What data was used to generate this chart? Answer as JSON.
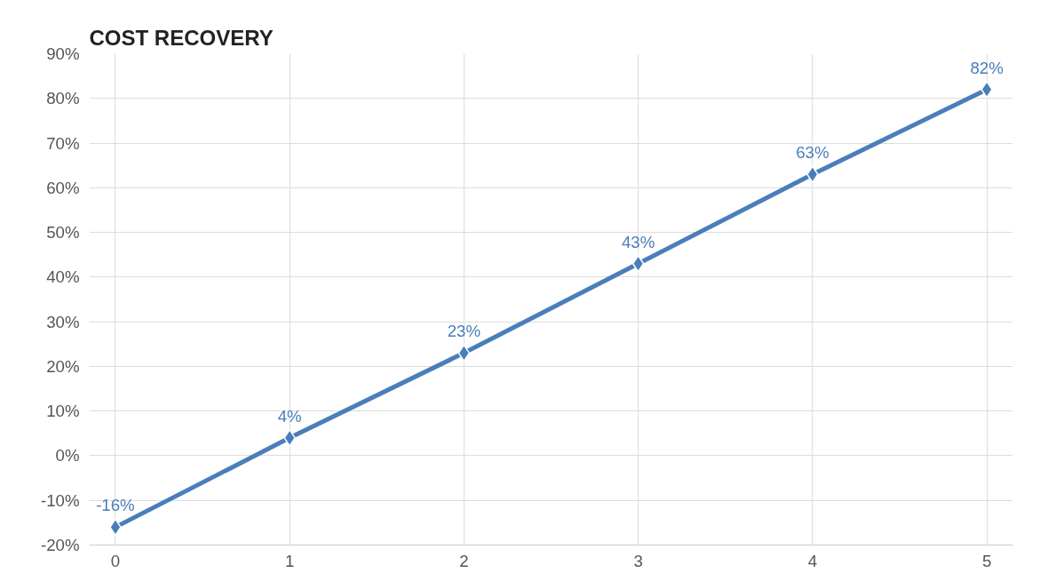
{
  "chart_data": {
    "type": "line",
    "title": "COST RECOVERY",
    "x": [
      0,
      1,
      2,
      3,
      4,
      5
    ],
    "series": [
      {
        "color": "#4a7ebb",
        "values": [
          -16,
          4,
          23,
          43,
          63,
          82
        ],
        "value_labels": [
          "-16%",
          "4%",
          "23%",
          "43%",
          "63%",
          "82%"
        ]
      }
    ],
    "xlim": [
      -0.15,
      5.15
    ],
    "xticks": [
      0,
      1,
      2,
      3,
      4,
      5
    ],
    "ylim": [
      -20,
      90
    ],
    "yticks": [
      {
        "value": -20,
        "label": "-20%"
      },
      {
        "value": -10,
        "label": "-10%"
      },
      {
        "value": 0,
        "label": "0%"
      },
      {
        "value": 10,
        "label": "10%"
      },
      {
        "value": 20,
        "label": "20%"
      },
      {
        "value": 30,
        "label": "30%"
      },
      {
        "value": 40,
        "label": "40%"
      },
      {
        "value": 50,
        "label": "50%"
      },
      {
        "value": 60,
        "label": "60%"
      },
      {
        "value": 70,
        "label": "70%"
      },
      {
        "value": 80,
        "label": "80%"
      },
      {
        "value": 90,
        "label": "90%"
      }
    ],
    "grid": true,
    "marker": "diamond",
    "line_style": "solid"
  }
}
